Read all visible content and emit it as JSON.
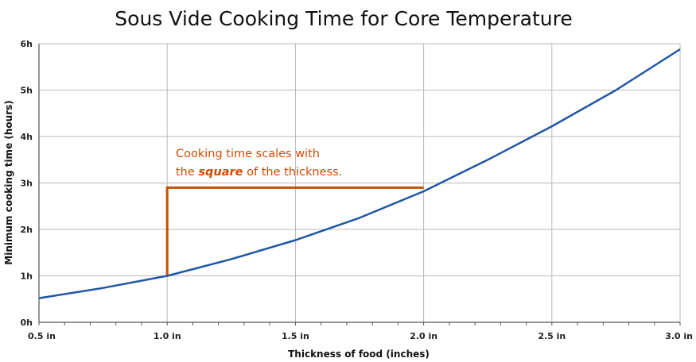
{
  "chart_data": {
    "type": "line",
    "title": "Sous Vide Cooking Time for Core Temperature",
    "xlabel": "Thickness of food (inches)",
    "ylabel": "Minimum cooking time (hours)",
    "xlim": [
      0.5,
      3.0
    ],
    "ylim": [
      0,
      6
    ],
    "grid": true,
    "x_ticks": [
      {
        "value": 0.5,
        "label": "0.5 in"
      },
      {
        "value": 1.0,
        "label": "1.0 in"
      },
      {
        "value": 1.5,
        "label": "1.5 in"
      },
      {
        "value": 2.0,
        "label": "2.0 in"
      },
      {
        "value": 2.5,
        "label": "2.5 in"
      },
      {
        "value": 3.0,
        "label": "3.0 in"
      }
    ],
    "y_ticks": [
      {
        "value": 0,
        "label": "0h"
      },
      {
        "value": 1,
        "label": "1h"
      },
      {
        "value": 2,
        "label": "2h"
      },
      {
        "value": 3,
        "label": "3h"
      },
      {
        "value": 4,
        "label": "4h"
      },
      {
        "value": 5,
        "label": "5h"
      },
      {
        "value": 6,
        "label": "6h"
      }
    ],
    "series": [
      {
        "color": "#1f56a5",
        "x": [
          0.5,
          0.75,
          1.0,
          1.25,
          1.5,
          1.75,
          2.0,
          2.25,
          2.5,
          2.75,
          3.0
        ],
        "y": [
          0.52,
          0.74,
          1.0,
          1.36,
          1.77,
          2.25,
          2.82,
          3.5,
          4.22,
          5.0,
          5.88
        ]
      }
    ],
    "annotation": {
      "line1": "Cooking time scales with",
      "line2_pre": "the ",
      "line2_em": "square",
      "line2_post": " of the thickness.",
      "color": "#d24a00",
      "bracket": {
        "x_start": 1.0,
        "x_end": 2.0,
        "y_start": 1.0,
        "y_end": 2.9
      }
    }
  }
}
